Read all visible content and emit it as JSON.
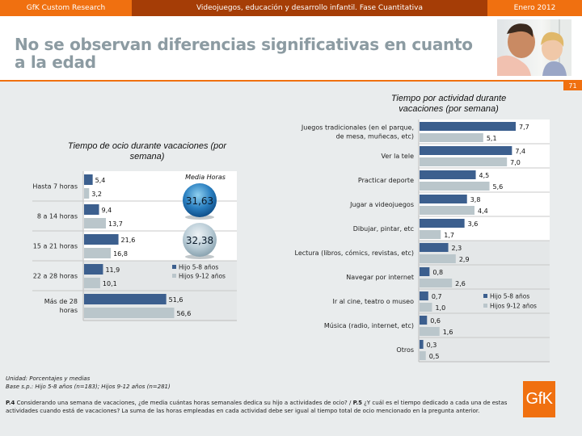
{
  "header": {
    "left": "GfK Custom Research",
    "center": "Videojuegos, educación y desarrollo infantil. Fase Cuantitativa",
    "right": "Enero 2012"
  },
  "title": "No se observan diferencias significativas en cuanto a la edad",
  "page_number": "71",
  "colors": {
    "orange": "#f07010",
    "dark_orange": "#a53d06",
    "series_1": "#3c5f8e",
    "series_2": "#bac6cb",
    "title_gray": "#8c9ba2"
  },
  "footnote": {
    "unit": "Unidad: Porcentajes y medias",
    "base": "Base s.p.: Hijo 5-8 años (n=183); Hijos 9-12 años (n=281)"
  },
  "question": {
    "p4_label": "P.4",
    "p4_text": " Considerando una semana de vacaciones, ¿de media cuántas horas semanales dedica su hijo a actividades de ocio? / ",
    "p5_label": "P.5",
    "p5_text": " ¿Y cuál es el tiempo dedicado a cada una de estas actividades cuando está de vacaciones? La suma de las horas empleadas en cada actividad debe ser igual al tiempo total de ocio mencionado en la pregunta anterior."
  },
  "logo": "GfK",
  "chart_data": [
    {
      "type": "bar",
      "orientation": "horizontal",
      "title": "Tiempo de ocio durante vacaciones (por semana)",
      "categories": [
        "Hasta 7 horas",
        "8 a 14 horas",
        "15 a 21 horas",
        "22 a 28 horas",
        "Más de 28 horas"
      ],
      "series": [
        {
          "name": "Hijo 5-8 años",
          "values": [
            5.4,
            9.4,
            21.6,
            11.9,
            51.6
          ],
          "labels": [
            "5,4",
            "9,4",
            "21,6",
            "11,9",
            "51,6"
          ]
        },
        {
          "name": "Hijos 9-12 años",
          "values": [
            3.2,
            13.7,
            16.8,
            10.1,
            56.6
          ],
          "labels": [
            "3,2",
            "13,7",
            "16,8",
            "10,1",
            "56,6"
          ]
        }
      ],
      "xlim": [
        0,
        100
      ],
      "legend": "right-middle",
      "annotation": {
        "label": "Media Horas",
        "values": [
          {
            "series": "Hijo 5-8 años",
            "value": 31.63,
            "text": "31,63"
          },
          {
            "series": "Hijos 9-12 años",
            "value": 32.38,
            "text": "32,38"
          }
        ]
      }
    },
    {
      "type": "bar",
      "orientation": "horizontal",
      "title": "Tiempo por actividad durante vacaciones (por semana)",
      "categories": [
        "Juegos tradicionales (en el parque, de mesa, muñecas, etc)",
        "Ver la tele",
        "Practicar deporte",
        "Jugar a videojuegos",
        "Dibujar, pintar, etc",
        "Lectura (libros, cómics, revistas, etc)",
        "Navegar por internet",
        "Ir al cine, teatro o museo",
        "Música (radio, internet, etc)",
        "Otros"
      ],
      "category_lines": [
        [
          "Juegos tradicionales (en el parque,",
          "de mesa, muñecas, etc)"
        ],
        [
          "Ver la tele"
        ],
        [
          "Practicar deporte"
        ],
        [
          "Jugar a videojuegos"
        ],
        [
          "Dibujar, pintar, etc"
        ],
        [
          "Lectura (libros, cómics, revistas, etc)"
        ],
        [
          "Navegar por internet"
        ],
        [
          "Ir al cine, teatro o museo"
        ],
        [
          "Música (radio, internet, etc)"
        ],
        [
          "Otros"
        ]
      ],
      "series": [
        {
          "name": "Hijo 5-8 años",
          "values": [
            7.7,
            7.4,
            4.5,
            3.8,
            3.6,
            2.3,
            0.8,
            0.7,
            0.6,
            0.3
          ],
          "labels": [
            "7,7",
            "7,4",
            "4,5",
            "3,8",
            "3,6",
            "2,3",
            "0,8",
            "0,7",
            "0,6",
            "0,3"
          ]
        },
        {
          "name": "Hijos 9-12 años",
          "values": [
            5.1,
            7.0,
            5.6,
            4.4,
            1.7,
            2.9,
            2.6,
            1.0,
            1.6,
            0.5
          ],
          "labels": [
            "5,1",
            "7,0",
            "5,6",
            "4,4",
            "1,7",
            "2,9",
            "2,6",
            "1,0",
            "1,6",
            "0,5"
          ]
        }
      ],
      "xlim": [
        0,
        9
      ],
      "legend": "right-middle"
    }
  ]
}
